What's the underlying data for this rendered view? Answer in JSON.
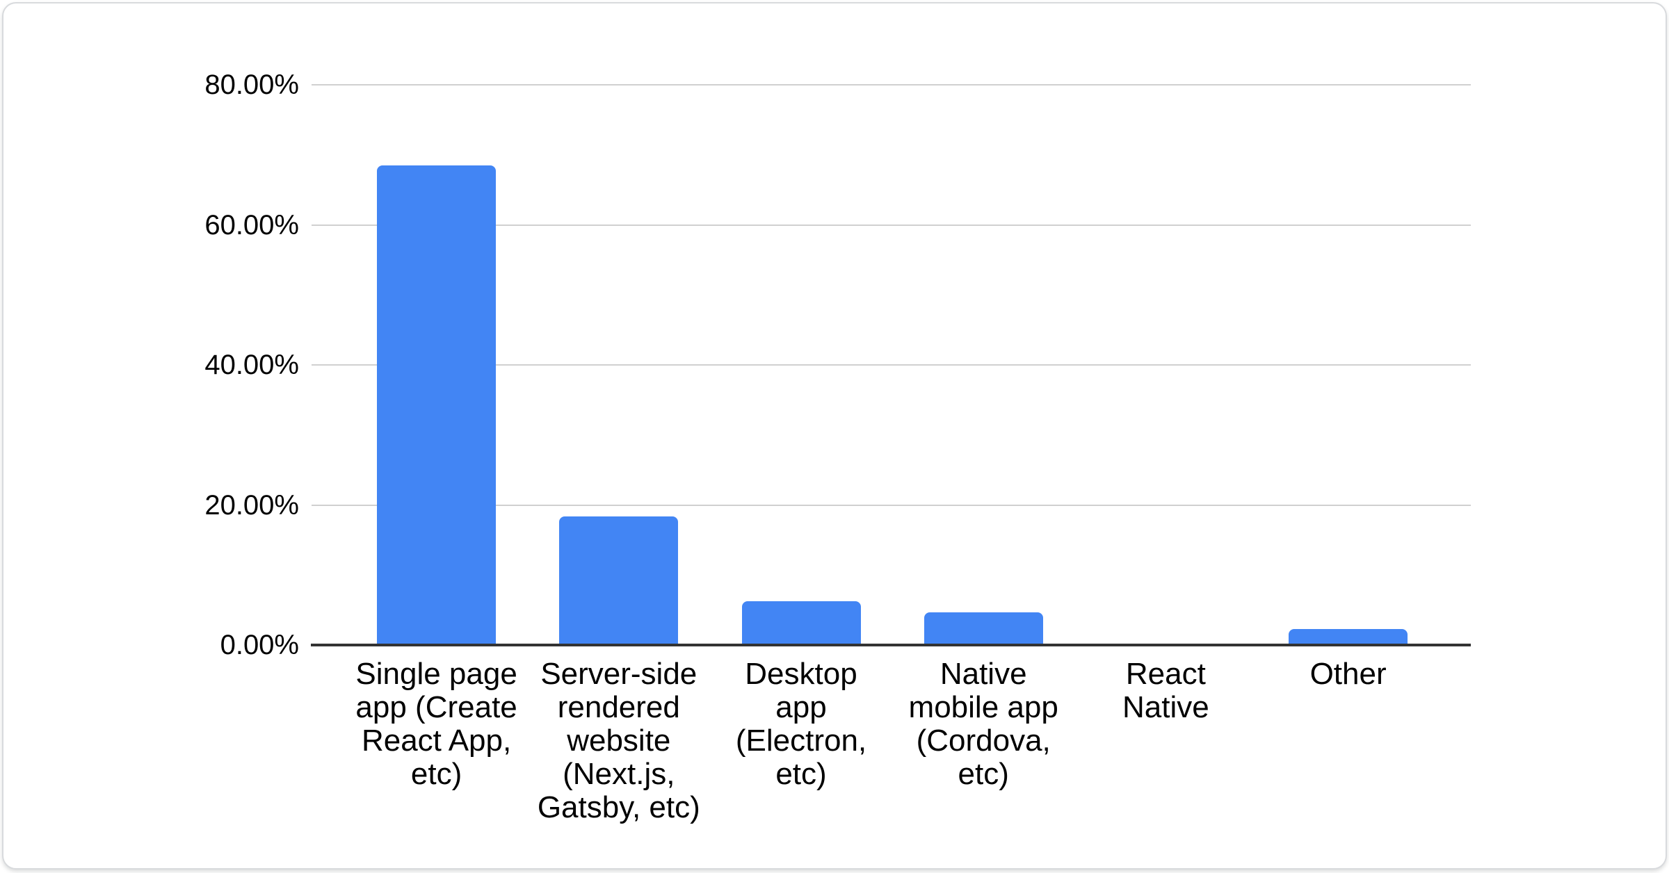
{
  "page": {
    "background": "#ffffff"
  },
  "card": {
    "background": "#ffffff",
    "border_color": "#d8dadd"
  },
  "colors": {
    "bar": "#4285f4",
    "gridline": "#d0d0d0",
    "axis_line": "#333333",
    "label_text": "#000000"
  },
  "chart_data": {
    "type": "bar",
    "title": "",
    "xlabel": "",
    "ylabel": "",
    "categories": [
      "Single page app (Create React App, etc)",
      "Server-side rendered website (Next.js, Gatsby, etc)",
      "Desktop app (Electron, etc)",
      "Native mobile app (Cordova, etc)",
      "React Native",
      "Other"
    ],
    "category_label_lines": [
      [
        "Single page",
        "app (Create",
        "React App,",
        "etc)"
      ],
      [
        "Server-side",
        "rendered",
        "website",
        "(Next.js,",
        "Gatsby, etc)"
      ],
      [
        "Desktop",
        "app",
        "(Electron,",
        "etc)"
      ],
      [
        "Native",
        "mobile app",
        "(Cordova,",
        "etc)"
      ],
      [
        "React",
        "Native"
      ],
      [
        "Other"
      ]
    ],
    "values": [
      68.5,
      18.4,
      6.3,
      4.7,
      0.0,
      2.3
    ],
    "value_unit": "%",
    "ylim": [
      0,
      80
    ],
    "y_ticks": [
      {
        "value": 0,
        "label": "0.00%"
      },
      {
        "value": 20,
        "label": "20.00%"
      },
      {
        "value": 40,
        "label": "40.00%"
      },
      {
        "value": 60,
        "label": "60.00%"
      },
      {
        "value": 80,
        "label": "80.00%"
      }
    ],
    "grid": true,
    "legend": "none",
    "bar_color": "#4285f4"
  }
}
